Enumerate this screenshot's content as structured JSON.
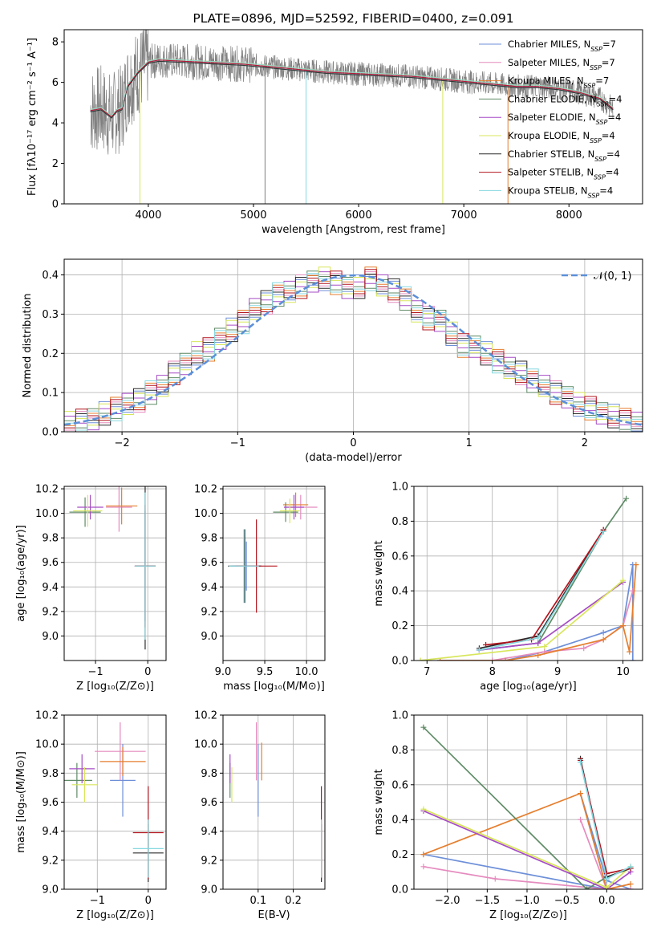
{
  "colors": {
    "Chabrier MILES": "#6d8fd8",
    "Salpeter MILES": "#e58bbe",
    "Kroupa MILES": "#e57f2f",
    "Chabrier ELODIE": "#5f8b66",
    "Salpeter ELODIE": "#a64cc5",
    "Kroupa ELODIE": "#d8e65b",
    "Chabrier STELIB": "#2a2a2a",
    "Salpeter STELIB": "#b2141e",
    "Kroupa STELIB": "#87d8e0",
    "data": "#808080",
    "normal": "#5b8fd8"
  },
  "chart_data": [
    {
      "id": "spectrum",
      "type": "line",
      "title": "PLATE=0896, MJD=52592, FIBERID=0400, z=0.091",
      "xlabel": "wavelength [Angstrom, rest frame]",
      "ylabel": "Flux [fλ10⁻¹⁷ erg cm⁻² s⁻¹ A⁻¹]",
      "xlim": [
        3200,
        8700
      ],
      "ylim": [
        0,
        8.6
      ],
      "xticks": [
        "4000",
        "5000",
        "6000",
        "7000",
        "8000"
      ],
      "yticks": [
        "0",
        "2",
        "4",
        "6",
        "8"
      ],
      "legend_position": "upper right",
      "legend": [
        "Chabrier MILES, N_SSP=7",
        "Salpeter MILES, N_SSP=7",
        "Kroupa MILES, N_SSP=7",
        "Chabrier ELODIE, N_SSP=4",
        "Salpeter ELODIE, N_SSP=4",
        "Kroupa ELODIE, N_SSP=4",
        "Chabrier STELIB, N_SSP=4",
        "Salpeter STELIB, N_SSP=4",
        "Kroupa STELIB, N_SSP=4"
      ],
      "model_continuum": {
        "x": [
          3450,
          3550,
          3650,
          3700,
          3750,
          3800,
          3900,
          4000,
          4100,
          4300,
          4500,
          4700,
          4900,
          5100,
          5300,
          5500,
          5700,
          5900,
          6100,
          6300,
          6500,
          6700,
          6900,
          7100,
          7300,
          7500,
          7700,
          7900,
          8100,
          8300,
          8420
        ],
        "y": [
          4.6,
          4.7,
          4.3,
          4.6,
          4.7,
          5.8,
          6.5,
          7.0,
          7.1,
          7.05,
          7.0,
          6.95,
          6.9,
          6.8,
          6.7,
          6.6,
          6.5,
          6.45,
          6.4,
          6.35,
          6.3,
          6.2,
          6.1,
          6.0,
          5.9,
          5.8,
          5.8,
          5.7,
          5.5,
          5.2,
          4.7
        ]
      },
      "gap_lines_x": [
        3920,
        5110,
        5500,
        6800,
        7420
      ]
    },
    {
      "id": "residuals",
      "type": "line",
      "xlabel": "(data-model)/error",
      "ylabel": "Normed distribution",
      "xlim": [
        -2.5,
        2.5
      ],
      "ylim": [
        0,
        0.44
      ],
      "xticks": [
        "−2",
        "−1",
        "0",
        "1",
        "2"
      ],
      "yticks": [
        "0.0",
        "0.1",
        "0.2",
        "0.3",
        "0.4"
      ],
      "legend": [
        "𝒩(0, 1)"
      ],
      "legend_position": "upper right",
      "bin_width": 0.1,
      "histogram_centers": [
        -2.45,
        -2.35,
        -2.25,
        -2.15,
        -2.05,
        -1.95,
        -1.85,
        -1.75,
        -1.65,
        -1.55,
        -1.45,
        -1.35,
        -1.25,
        -1.15,
        -1.05,
        -0.95,
        -0.85,
        -0.75,
        -0.65,
        -0.55,
        -0.45,
        -0.35,
        -0.25,
        -0.15,
        -0.05,
        0.05,
        0.15,
        0.25,
        0.35,
        0.45,
        0.55,
        0.65,
        0.75,
        0.85,
        0.95,
        1.05,
        1.15,
        1.25,
        1.35,
        1.45,
        1.55,
        1.65,
        1.75,
        1.85,
        1.95,
        2.05,
        2.15,
        2.25,
        2.35,
        2.45
      ],
      "histogram_values": [
        0.022,
        0.028,
        0.035,
        0.047,
        0.058,
        0.068,
        0.08,
        0.1,
        0.12,
        0.15,
        0.17,
        0.2,
        0.21,
        0.24,
        0.26,
        0.28,
        0.31,
        0.33,
        0.35,
        0.36,
        0.37,
        0.38,
        0.39,
        0.38,
        0.37,
        0.37,
        0.39,
        0.37,
        0.36,
        0.34,
        0.31,
        0.29,
        0.28,
        0.25,
        0.22,
        0.22,
        0.2,
        0.18,
        0.16,
        0.15,
        0.13,
        0.12,
        0.1,
        0.085,
        0.07,
        0.06,
        0.05,
        0.04,
        0.03,
        0.02
      ],
      "normal_curve": "N(0,1)"
    },
    {
      "id": "age-vs-Z",
      "type": "scatter",
      "xlabel": "Z [log₁₀(Z/Z⊙)]",
      "ylabel": "age  [log₁₀(age/yr)]",
      "xlim": [
        -1.6,
        0.35
      ],
      "ylim": [
        8.8,
        10.22
      ],
      "xticks": [
        "−1",
        "0"
      ],
      "yticks": [
        "9.0",
        "9.2",
        "9.4",
        "9.6",
        "9.8",
        "10.0",
        "10.2"
      ],
      "points": [
        {
          "model": "Chabrier MILES",
          "x": -0.05,
          "y": 9.57,
          "xerr": 0.2,
          "yerr": 0.45
        },
        {
          "model": "Salpeter MILES",
          "x": -0.55,
          "y": 10.05,
          "xerr": 0.25,
          "yerr": 0.2
        },
        {
          "model": "Kroupa MILES",
          "x": -0.5,
          "y": 10.06,
          "xerr": 0.3,
          "yerr": 0.15
        },
        {
          "model": "Chabrier ELODIE",
          "x": -1.2,
          "y": 10.01,
          "xerr": 0.3,
          "yerr": 0.12
        },
        {
          "model": "Salpeter ELODIE",
          "x": -1.1,
          "y": 10.05,
          "xerr": 0.25,
          "yerr": 0.1
        },
        {
          "model": "Kroupa ELODIE",
          "x": -1.15,
          "y": 10.02,
          "xerr": 0.28,
          "yerr": 0.13
        },
        {
          "model": "Chabrier STELIB",
          "x": -0.05,
          "y": 9.57,
          "xerr": 0.2,
          "yerr": 0.68
        },
        {
          "model": "Salpeter STELIB",
          "x": -0.05,
          "y": 9.57,
          "xerr": 0.2,
          "yerr": 0.5
        },
        {
          "model": "Kroupa STELIB",
          "x": -0.05,
          "y": 9.57,
          "xerr": 0.2,
          "yerr": 0.6
        }
      ]
    },
    {
      "id": "age-vs-mass",
      "type": "scatter",
      "xlabel": "mass [log₁₀(M/M⊙)]",
      "ylabel": "",
      "xlim": [
        9.0,
        10.22
      ],
      "ylim": [
        8.8,
        10.22
      ],
      "xticks": [
        "9.0",
        "9.5",
        "10.0"
      ],
      "yticks": [
        "9.0",
        "9.2",
        "9.4",
        "9.6",
        "9.8",
        "10.0",
        "10.2"
      ],
      "points": [
        {
          "model": "Chabrier MILES",
          "x": 9.28,
          "y": 9.57,
          "xerr": 0.18,
          "yerr": 0.2
        },
        {
          "model": "Salpeter MILES",
          "x": 9.93,
          "y": 10.05,
          "xerr": 0.2,
          "yerr": 0.1
        },
        {
          "model": "Kroupa MILES",
          "x": 9.87,
          "y": 10.07,
          "xerr": 0.15,
          "yerr": 0.1
        },
        {
          "model": "Chabrier ELODIE",
          "x": 9.75,
          "y": 10.01,
          "xerr": 0.15,
          "yerr": 0.08
        },
        {
          "model": "Salpeter ELODIE",
          "x": 9.85,
          "y": 10.05,
          "xerr": 0.12,
          "yerr": 0.1
        },
        {
          "model": "Kroupa ELODIE",
          "x": 9.8,
          "y": 10.02,
          "xerr": 0.12,
          "yerr": 0.1
        },
        {
          "model": "Chabrier STELIB",
          "x": 9.26,
          "y": 9.57,
          "xerr": 0.2,
          "yerr": 0.3
        },
        {
          "model": "Salpeter STELIB",
          "x": 9.4,
          "y": 9.57,
          "xerr": 0.25,
          "yerr": 0.38
        },
        {
          "model": "Kroupa STELIB",
          "x": 9.25,
          "y": 9.57,
          "xerr": 0.18,
          "yerr": 0.3
        }
      ]
    },
    {
      "id": "mass-weight-vs-age",
      "type": "line",
      "xlabel": "age  [log₁₀(age/yr)]",
      "ylabel": "mass weight",
      "xlim": [
        6.8,
        10.3
      ],
      "ylim": [
        0,
        1.0
      ],
      "xticks": [
        "7",
        "8",
        "9",
        "10"
      ],
      "yticks": [
        "0.0",
        "0.2",
        "0.4",
        "0.6",
        "0.8",
        "1.0"
      ],
      "series": [
        {
          "model": "Chabrier MILES",
          "x": [
            7.2,
            8.2,
            8.8,
            9.7,
            10.0,
            10.15,
            10.15
          ],
          "y": [
            0.0,
            0.0,
            0.05,
            0.16,
            0.2,
            0.55,
            0.0
          ]
        },
        {
          "model": "Salpeter MILES",
          "x": [
            7.2,
            8.0,
            8.8,
            9.4,
            9.7,
            10.0,
            10.15
          ],
          "y": [
            0.0,
            0.0,
            0.05,
            0.07,
            0.12,
            0.2,
            0.4
          ]
        },
        {
          "model": "Kroupa MILES",
          "x": [
            7.2,
            8.2,
            8.7,
            9.7,
            10.0,
            10.1,
            10.2
          ],
          "y": [
            0.0,
            0.0,
            0.03,
            0.12,
            0.2,
            0.05,
            0.55
          ]
        },
        {
          "model": "Chabrier ELODIE",
          "x": [
            7.8,
            8.7,
            9.7,
            10.05
          ],
          "y": [
            0.06,
            0.1,
            0.74,
            0.93
          ]
        },
        {
          "model": "Salpeter ELODIE",
          "x": [
            7.8,
            8.7,
            10.0
          ],
          "y": [
            0.06,
            0.1,
            0.45
          ]
        },
        {
          "model": "Kroupa ELODIE",
          "x": [
            6.9,
            8.8,
            10.0
          ],
          "y": [
            0.0,
            0.08,
            0.46
          ]
        },
        {
          "model": "Chabrier STELIB",
          "x": [
            7.8,
            8.7,
            9.7
          ],
          "y": [
            0.07,
            0.14,
            0.75
          ]
        },
        {
          "model": "Salpeter STELIB",
          "x": [
            7.9,
            8.6,
            9.7
          ],
          "y": [
            0.09,
            0.12,
            0.75
          ]
        },
        {
          "model": "Kroupa STELIB",
          "x": [
            7.8,
            8.7,
            9.7
          ],
          "y": [
            0.06,
            0.13,
            0.74
          ]
        }
      ]
    },
    {
      "id": "mass-vs-Z",
      "type": "scatter",
      "xlabel": "Z [log₁₀(Z/Z⊙)]",
      "ylabel": "mass [log₁₀(M/M⊙)]",
      "xlim": [
        -1.65,
        0.35
      ],
      "ylim": [
        9.0,
        10.2
      ],
      "xticks": [
        "−1",
        "0"
      ],
      "yticks": [
        "9.0",
        "9.2",
        "9.4",
        "9.6",
        "9.8",
        "10.0",
        "10.2"
      ],
      "points": [
        {
          "model": "Chabrier MILES",
          "x": -0.5,
          "y": 9.75,
          "xerr": 0.25,
          "yerr": 0.25
        },
        {
          "model": "Salpeter MILES",
          "x": -0.55,
          "y": 9.95,
          "xerr": 0.5,
          "yerr": 0.2
        },
        {
          "model": "Kroupa MILES",
          "x": -0.5,
          "y": 9.88,
          "xerr": 0.45,
          "yerr": 0.1
        },
        {
          "model": "Chabrier ELODIE",
          "x": -1.4,
          "y": 9.75,
          "xerr": 0.3,
          "yerr": 0.12
        },
        {
          "model": "Salpeter ELODIE",
          "x": -1.3,
          "y": 9.83,
          "xerr": 0.25,
          "yerr": 0.1
        },
        {
          "model": "Kroupa ELODIE",
          "x": -1.25,
          "y": 9.72,
          "xerr": 0.25,
          "yerr": 0.12
        },
        {
          "model": "Chabrier STELIB",
          "x": 0.0,
          "y": 9.25,
          "xerr": 0.3,
          "yerr": 0.2
        },
        {
          "model": "Salpeter STELIB",
          "x": 0.0,
          "y": 9.39,
          "xerr": 0.3,
          "yerr": 0.32
        },
        {
          "model": "Kroupa STELIB",
          "x": 0.0,
          "y": 9.28,
          "xerr": 0.3,
          "yerr": 0.2
        }
      ]
    },
    {
      "id": "mass-vs-EBV",
      "type": "scatter",
      "xlabel": "E(B-V)",
      "ylabel": "",
      "xlim": [
        0.0,
        0.29
      ],
      "ylim": [
        9.0,
        10.2
      ],
      "xticks": [
        "0.1",
        "0.2"
      ],
      "yticks": [
        "9.0",
        "9.2",
        "9.4",
        "9.6",
        "9.8",
        "10.0",
        "10.2"
      ],
      "points": [
        {
          "model": "Chabrier MILES",
          "x": 0.1,
          "y": 9.75,
          "yerr": 0.25
        },
        {
          "model": "Salpeter MILES",
          "x": 0.095,
          "y": 9.95,
          "yerr": 0.2
        },
        {
          "model": "Kroupa MILES",
          "x": 0.11,
          "y": 9.88,
          "yerr": 0.13
        },
        {
          "model": "Chabrier ELODIE",
          "x": 0.02,
          "y": 9.75,
          "yerr": 0.12
        },
        {
          "model": "Salpeter ELODIE",
          "x": 0.02,
          "y": 9.83,
          "yerr": 0.1
        },
        {
          "model": "Kroupa ELODIE",
          "x": 0.025,
          "y": 9.72,
          "yerr": 0.12
        },
        {
          "model": "Chabrier STELIB",
          "x": 0.28,
          "y": 9.25,
          "yerr": 0.2
        },
        {
          "model": "Salpeter STELIB",
          "x": 0.28,
          "y": 9.39,
          "yerr": 0.32
        },
        {
          "model": "Kroupa STELIB",
          "x": 0.28,
          "y": 9.28,
          "yerr": 0.2
        }
      ]
    },
    {
      "id": "mass-weight-vs-Z",
      "type": "line",
      "xlabel": "Z [log₁₀(Z/Z⊙)]",
      "ylabel": "mass weight",
      "xlim": [
        -2.42,
        0.45
      ],
      "ylim": [
        0,
        1.0
      ],
      "xticks": [
        "−2.0",
        "−1.5",
        "−1.0",
        "−0.5",
        "0.0"
      ],
      "yticks": [
        "0.0",
        "0.2",
        "0.4",
        "0.6",
        "0.8",
        "1.0"
      ],
      "series": [
        {
          "model": "Chabrier MILES",
          "x": [
            -2.3,
            0.0,
            -0.33,
            0.0,
            0.3
          ],
          "y": [
            0.2,
            0.0,
            0.55,
            0.05,
            0.0
          ]
        },
        {
          "model": "Salpeter MILES",
          "x": [
            -2.3,
            -1.4,
            0.0,
            -0.33,
            0.0,
            0.3
          ],
          "y": [
            0.13,
            0.06,
            0.0,
            0.4,
            0.0,
            0.0
          ]
        },
        {
          "model": "Kroupa MILES",
          "x": [
            -2.3,
            -0.33,
            0.0,
            0.3
          ],
          "y": [
            0.2,
            0.55,
            0.0,
            0.03
          ]
        },
        {
          "model": "Chabrier ELODIE",
          "x": [
            -2.3,
            -0.25,
            0.0,
            0.3
          ],
          "y": [
            0.93,
            0.0,
            0.07,
            0.12
          ]
        },
        {
          "model": "Salpeter ELODIE",
          "x": [
            -2.3,
            0.0,
            0.3
          ],
          "y": [
            0.45,
            0.0,
            0.1
          ]
        },
        {
          "model": "Kroupa ELODIE",
          "x": [
            -2.3,
            0.0,
            0.3
          ],
          "y": [
            0.46,
            0.01,
            0.13
          ]
        },
        {
          "model": "Chabrier STELIB",
          "x": [
            -0.33,
            0.0,
            0.3
          ],
          "y": [
            0.75,
            0.07,
            0.12
          ]
        },
        {
          "model": "Salpeter STELIB",
          "x": [
            -0.33,
            0.0,
            0.3
          ],
          "y": [
            0.74,
            0.09,
            0.12
          ]
        },
        {
          "model": "Kroupa STELIB",
          "x": [
            -0.33,
            0.0,
            0.3
          ],
          "y": [
            0.73,
            0.06,
            0.13
          ]
        }
      ]
    }
  ]
}
